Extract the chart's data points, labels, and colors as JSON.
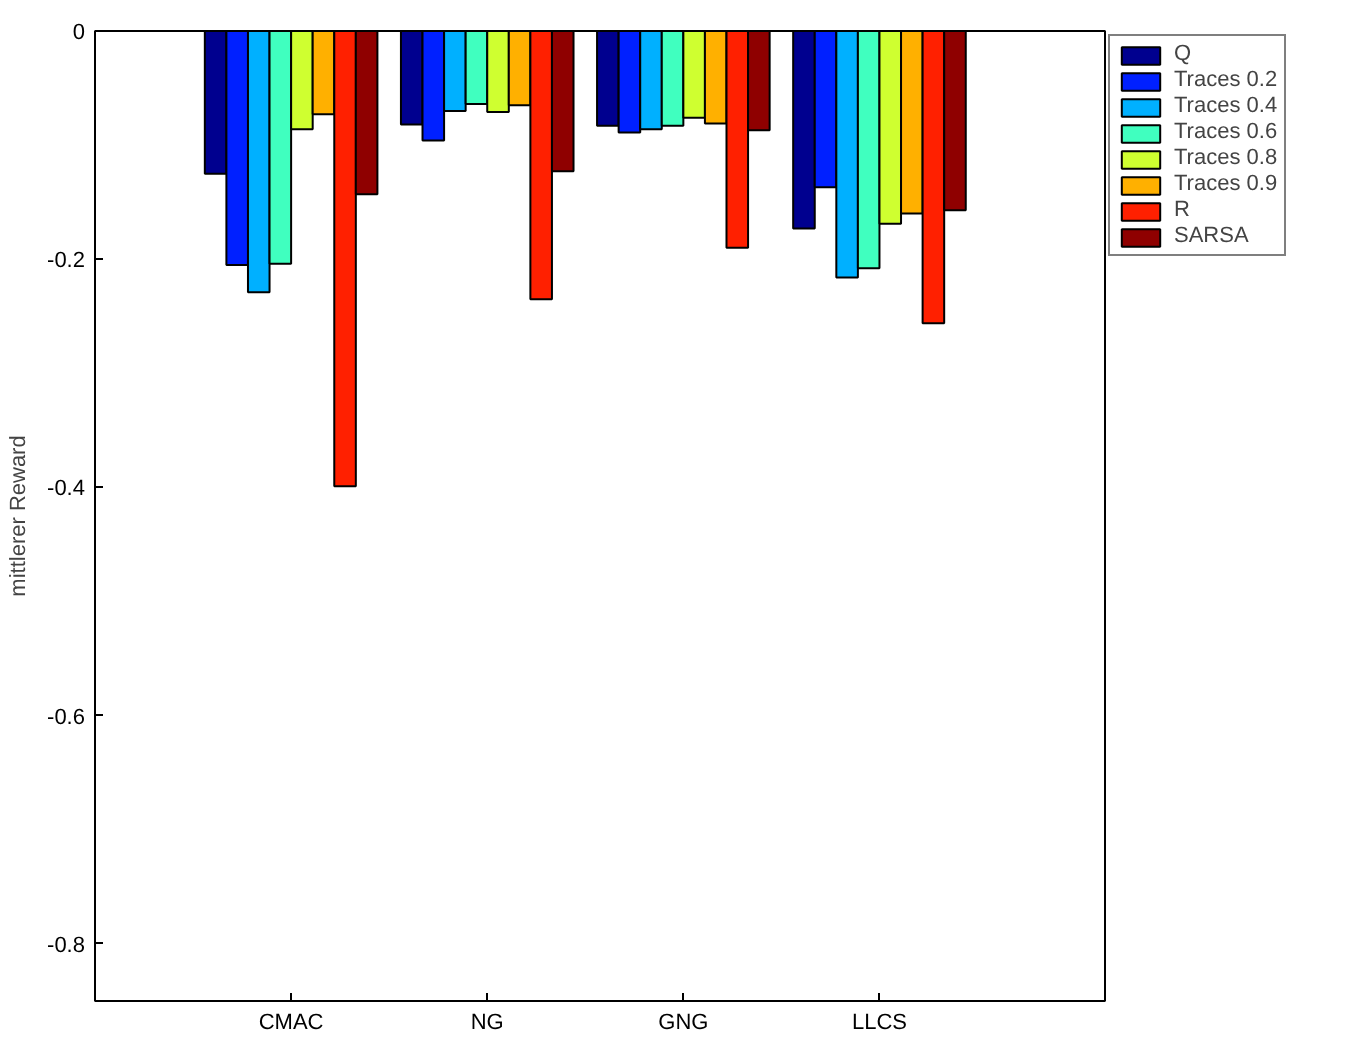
{
  "chart_data": {
    "type": "bar",
    "ylabel": "mittlerer Reward",
    "categories": [
      "CMAC",
      "NG",
      "GNG",
      "LLCS"
    ],
    "series": [
      {
        "name": "Q",
        "color": "#00008f",
        "values": [
          -0.125,
          -0.082,
          -0.083,
          -0.173
        ]
      },
      {
        "name": "Traces 0.2",
        "color": "#0020ff",
        "values": [
          -0.205,
          -0.096,
          -0.089,
          -0.137
        ]
      },
      {
        "name": "Traces 0.4",
        "color": "#00b0ff",
        "values": [
          -0.229,
          -0.07,
          -0.086,
          -0.216
        ]
      },
      {
        "name": "Traces 0.6",
        "color": "#40ffbf",
        "values": [
          -0.204,
          -0.064,
          -0.083,
          -0.208
        ]
      },
      {
        "name": "Traces 0.8",
        "color": "#cfff30",
        "values": [
          -0.086,
          -0.071,
          -0.076,
          -0.169
        ]
      },
      {
        "name": "Traces 0.9",
        "color": "#ffb000",
        "values": [
          -0.073,
          -0.065,
          -0.081,
          -0.16
        ]
      },
      {
        "name": "R",
        "color": "#ff2000",
        "values": [
          -0.399,
          -0.235,
          -0.19,
          -0.256
        ]
      },
      {
        "name": "SARSA",
        "color": "#8f0000",
        "values": [
          -0.143,
          -0.123,
          -0.087,
          -0.157
        ]
      }
    ],
    "ylim": [
      -0.85,
      0
    ],
    "yticks": [
      -0.8,
      -0.6,
      -0.4,
      -0.2,
      0
    ],
    "grid": false,
    "legend": "top right"
  }
}
